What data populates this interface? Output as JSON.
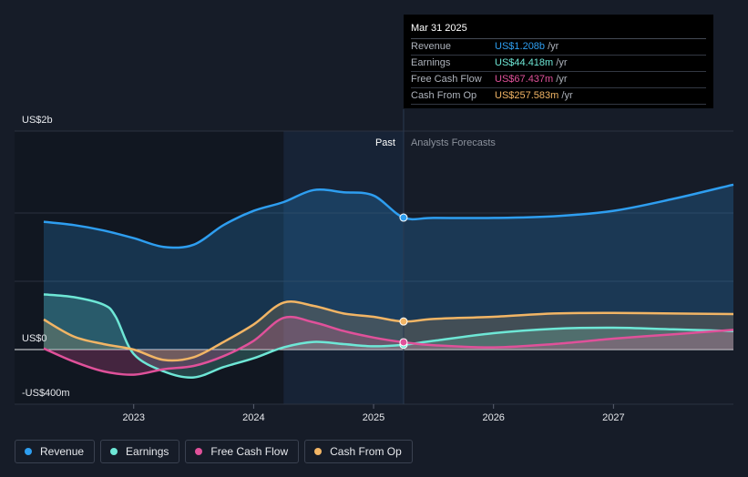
{
  "tooltip": {
    "date": "Mar 31 2025",
    "rows": [
      {
        "label": "Revenue",
        "value": "US$1.208b",
        "unit": " /yr",
        "color": "#2e9ef0"
      },
      {
        "label": "Earnings",
        "value": "US$44.418m",
        "unit": " /yr",
        "color": "#6ee7d6"
      },
      {
        "label": "Free Cash Flow",
        "value": "US$67.437m",
        "unit": " /yr",
        "color": "#e0519a"
      },
      {
        "label": "Cash From Op",
        "value": "US$257.583m",
        "unit": " /yr",
        "color": "#f2b565"
      }
    ]
  },
  "periods": {
    "past": "Past",
    "forecast": "Analysts Forecasts"
  },
  "legend": [
    {
      "label": "Revenue",
      "color": "#2e9ef0"
    },
    {
      "label": "Earnings",
      "color": "#6ee7d6"
    },
    {
      "label": "Free Cash Flow",
      "color": "#e0519a"
    },
    {
      "label": "Cash From Op",
      "color": "#f2b565"
    }
  ],
  "chart_data": {
    "type": "line",
    "title": "",
    "xlabel": "",
    "ylabel": "",
    "y_labels": [
      {
        "value": 2000,
        "text": "US$2b"
      },
      {
        "value": 0,
        "text": "US$0"
      },
      {
        "value": -400,
        "text": "-US$400m"
      }
    ],
    "ylim": [
      -400,
      2000
    ],
    "xlim": [
      2022.25,
      2028.0
    ],
    "x_ticks": [
      {
        "value": 2023,
        "text": "2023"
      },
      {
        "value": 2024,
        "text": "2024"
      },
      {
        "value": 2025,
        "text": "2025"
      },
      {
        "value": 2026,
        "text": "2026"
      },
      {
        "value": 2027,
        "text": "2027"
      }
    ],
    "forecast_start": 2025.25,
    "highlight_start": 2024.25,
    "series": [
      {
        "name": "Revenue",
        "color": "#2e9ef0",
        "points": [
          [
            2022.25,
            1170
          ],
          [
            2022.5,
            1140
          ],
          [
            2022.75,
            1090
          ],
          [
            2023.0,
            1020
          ],
          [
            2023.25,
            940
          ],
          [
            2023.5,
            960
          ],
          [
            2023.75,
            1140
          ],
          [
            2024.0,
            1270
          ],
          [
            2024.25,
            1350
          ],
          [
            2024.5,
            1460
          ],
          [
            2024.75,
            1440
          ],
          [
            2025.0,
            1410
          ],
          [
            2025.25,
            1208
          ],
          [
            2025.5,
            1205
          ],
          [
            2026.0,
            1205
          ],
          [
            2026.5,
            1220
          ],
          [
            2027.0,
            1270
          ],
          [
            2027.5,
            1380
          ],
          [
            2028.0,
            1510
          ]
        ]
      },
      {
        "name": "Earnings",
        "color": "#6ee7d6",
        "points": [
          [
            2022.25,
            505
          ],
          [
            2022.5,
            480
          ],
          [
            2022.75,
            410
          ],
          [
            2022.85,
            300
          ],
          [
            2023.0,
            -40
          ],
          [
            2023.25,
            -200
          ],
          [
            2023.5,
            -255
          ],
          [
            2023.75,
            -160
          ],
          [
            2024.0,
            -80
          ],
          [
            2024.25,
            20
          ],
          [
            2024.5,
            70
          ],
          [
            2024.75,
            50
          ],
          [
            2025.0,
            30
          ],
          [
            2025.25,
            44
          ],
          [
            2025.5,
            80
          ],
          [
            2026.0,
            150
          ],
          [
            2026.5,
            190
          ],
          [
            2027.0,
            200
          ],
          [
            2027.5,
            185
          ],
          [
            2028.0,
            170
          ]
        ]
      },
      {
        "name": "Free Cash Flow",
        "color": "#e0519a",
        "points": [
          [
            2022.25,
            10
          ],
          [
            2022.5,
            -110
          ],
          [
            2022.75,
            -200
          ],
          [
            2023.0,
            -230
          ],
          [
            2023.25,
            -180
          ],
          [
            2023.5,
            -150
          ],
          [
            2023.75,
            -60
          ],
          [
            2024.0,
            80
          ],
          [
            2024.25,
            290
          ],
          [
            2024.5,
            250
          ],
          [
            2024.75,
            170
          ],
          [
            2025.0,
            110
          ],
          [
            2025.25,
            67
          ],
          [
            2025.5,
            40
          ],
          [
            2026.0,
            20
          ],
          [
            2026.5,
            50
          ],
          [
            2027.0,
            100
          ],
          [
            2027.5,
            140
          ],
          [
            2028.0,
            180
          ]
        ]
      },
      {
        "name": "Cash From Op",
        "color": "#f2b565",
        "points": [
          [
            2022.25,
            275
          ],
          [
            2022.5,
            120
          ],
          [
            2022.75,
            50
          ],
          [
            2023.0,
            0
          ],
          [
            2023.25,
            -95
          ],
          [
            2023.5,
            -70
          ],
          [
            2023.75,
            70
          ],
          [
            2024.0,
            230
          ],
          [
            2024.25,
            430
          ],
          [
            2024.5,
            400
          ],
          [
            2024.75,
            330
          ],
          [
            2025.0,
            300
          ],
          [
            2025.25,
            257
          ],
          [
            2025.5,
            280
          ],
          [
            2026.0,
            300
          ],
          [
            2026.5,
            330
          ],
          [
            2027.0,
            335
          ],
          [
            2027.5,
            330
          ],
          [
            2028.0,
            325
          ]
        ]
      }
    ]
  }
}
